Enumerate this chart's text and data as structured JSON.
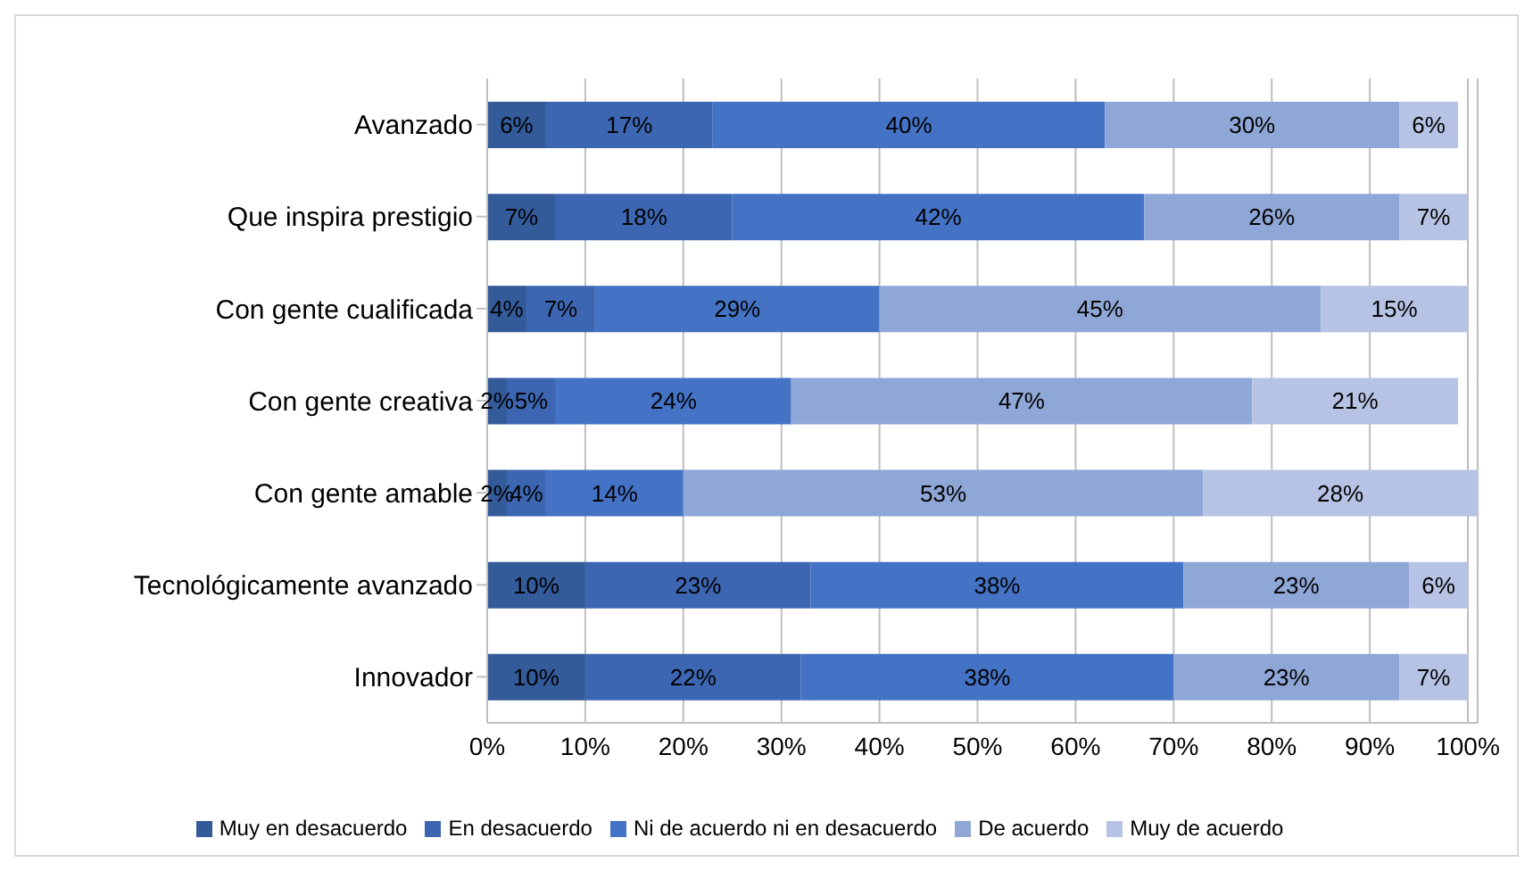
{
  "chart_data": {
    "type": "bar",
    "orientation": "horizontal",
    "stacked": true,
    "categories": [
      "Avanzado",
      "Que inspira prestigio",
      "Con gente cualificada",
      "Con gente creativa",
      "Con gente amable",
      "Tecnológicamente avanzado",
      "Innovador"
    ],
    "series": [
      {
        "name": "Muy en desacuerdo",
        "color": "#335a99",
        "values": [
          6,
          7,
          4,
          2,
          2,
          10,
          10
        ],
        "value_labels": [
          "6%",
          "7%",
          "4%",
          "2%",
          "2%",
          "10%",
          "10%"
        ]
      },
      {
        "name": "En desacuerdo",
        "color": "#3d66b2",
        "values": [
          17,
          18,
          7,
          5,
          4,
          23,
          22
        ],
        "value_labels": [
          "17%",
          "18%",
          "7%",
          "5%",
          "4%",
          "23%",
          "22%"
        ]
      },
      {
        "name": "Ni de acuerdo ni en desacuerdo",
        "color": "#4472c4",
        "values": [
          40,
          42,
          29,
          24,
          14,
          38,
          38
        ],
        "value_labels": [
          "40%",
          "42%",
          "29%",
          "24%",
          "14%",
          "38%",
          "38%"
        ]
      },
      {
        "name": "De acuerdo",
        "color": "#8fa7d6",
        "values": [
          30,
          26,
          45,
          47,
          53,
          23,
          23
        ],
        "value_labels": [
          "30%",
          "26%",
          "45%",
          "47%",
          "53%",
          "23%",
          "23%"
        ]
      },
      {
        "name": "Muy de acuerdo",
        "color": "#b6c3e4",
        "values": [
          6,
          7,
          15,
          21,
          28,
          6,
          7
        ],
        "value_labels": [
          "6%",
          "7%",
          "15%",
          "21%",
          "28%",
          "6%",
          "7%"
        ]
      }
    ],
    "xlim": [
      0,
      101
    ],
    "xticks": [
      {
        "value": 0,
        "label": "0%"
      },
      {
        "value": 10,
        "label": "10%"
      },
      {
        "value": 20,
        "label": "20%"
      },
      {
        "value": 30,
        "label": "30%"
      },
      {
        "value": 40,
        "label": "40%"
      },
      {
        "value": 50,
        "label": "50%"
      },
      {
        "value": 60,
        "label": "60%"
      },
      {
        "value": 70,
        "label": "70%"
      },
      {
        "value": 80,
        "label": "80%"
      },
      {
        "value": 90,
        "label": "90%"
      },
      {
        "value": 100,
        "label": "100%"
      }
    ],
    "grid": "x",
    "legend": "bottom"
  }
}
